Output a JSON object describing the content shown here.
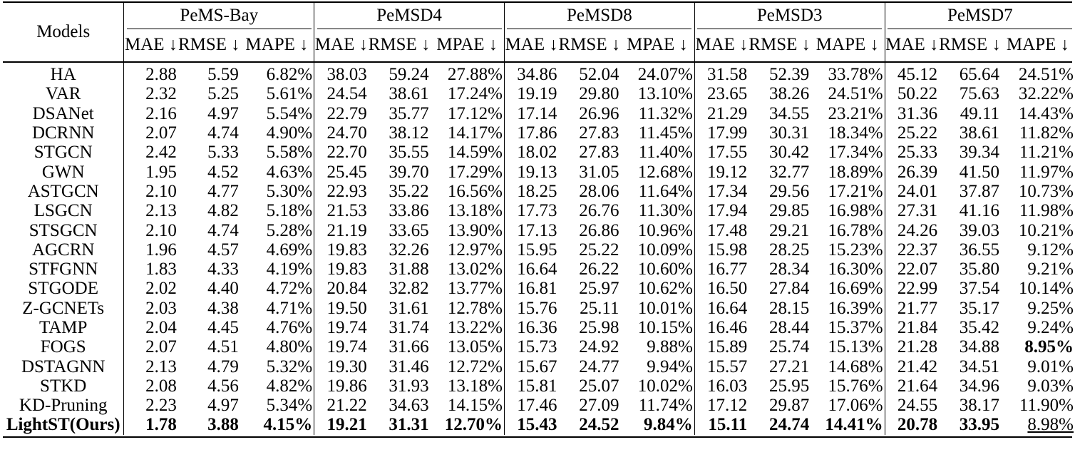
{
  "header": {
    "models_label": "Models",
    "groups": [
      "PeMS-Bay",
      "PeMSD4",
      "PeMSD8",
      "PeMSD3",
      "PeMSD7"
    ],
    "metrics": [
      [
        "MAE ↓",
        "RMSE ↓",
        "MAPE ↓"
      ],
      [
        "MAE ↓",
        "RMSE ↓",
        "MPAE ↓"
      ],
      [
        "MAE ↓",
        "RMSE ↓",
        "MPAE ↓"
      ],
      [
        "MAE ↓",
        "RMSE ↓",
        "MAPE ↓"
      ],
      [
        "MAE ↓",
        "RMSE ↓",
        "MAPE ↓"
      ]
    ]
  },
  "rows": [
    {
      "model": "HA",
      "values": [
        "2.88",
        "5.59",
        "6.82%",
        "38.03",
        "59.24",
        "27.88%",
        "34.86",
        "52.04",
        "24.07%",
        "31.58",
        "52.39",
        "33.78%",
        "45.12",
        "65.64",
        "24.51%"
      ]
    },
    {
      "model": "VAR",
      "values": [
        "2.32",
        "5.25",
        "5.61%",
        "24.54",
        "38.61",
        "17.24%",
        "19.19",
        "29.80",
        "13.10%",
        "23.65",
        "38.26",
        "24.51%",
        "50.22",
        "75.63",
        "32.22%"
      ]
    },
    {
      "model": "DSANet",
      "values": [
        "2.16",
        "4.97",
        "5.54%",
        "22.79",
        "35.77",
        "17.12%",
        "17.14",
        "26.96",
        "11.32%",
        "21.29",
        "34.55",
        "23.21%",
        "31.36",
        "49.11",
        "14.43%"
      ]
    },
    {
      "model": "DCRNN",
      "values": [
        "2.07",
        "4.74",
        "4.90%",
        "24.70",
        "38.12",
        "14.17%",
        "17.86",
        "27.83",
        "11.45%",
        "17.99",
        "30.31",
        "18.34%",
        "25.22",
        "38.61",
        "11.82%"
      ]
    },
    {
      "model": "STGCN",
      "values": [
        "2.42",
        "5.33",
        "5.58%",
        "22.70",
        "35.55",
        "14.59%",
        "18.02",
        "27.83",
        "11.40%",
        "17.55",
        "30.42",
        "17.34%",
        "25.33",
        "39.34",
        "11.21%"
      ]
    },
    {
      "model": "GWN",
      "values": [
        "1.95",
        "4.52",
        "4.63%",
        "25.45",
        "39.70",
        "17.29%",
        "19.13",
        "31.05",
        "12.68%",
        "19.12",
        "32.77",
        "18.89%",
        "26.39",
        "41.50",
        "11.97%"
      ]
    },
    {
      "model": "ASTGCN",
      "values": [
        "2.10",
        "4.77",
        "5.30%",
        "22.93",
        "35.22",
        "16.56%",
        "18.25",
        "28.06",
        "11.64%",
        "17.34",
        "29.56",
        "17.21%",
        "24.01",
        "37.87",
        "10.73%"
      ]
    },
    {
      "model": "LSGCN",
      "values": [
        "2.13",
        "4.82",
        "5.18%",
        "21.53",
        "33.86",
        "13.18%",
        "17.73",
        "26.76",
        "11.30%",
        "17.94",
        "29.85",
        "16.98%",
        "27.31",
        "41.16",
        "11.98%"
      ]
    },
    {
      "model": "STSGCN",
      "values": [
        "2.10",
        "4.74",
        "5.28%",
        "21.19",
        "33.65",
        "13.90%",
        "17.13",
        "26.86",
        "10.96%",
        "17.48",
        "29.21",
        "16.78%",
        "24.26",
        "39.03",
        "10.21%"
      ]
    },
    {
      "model": "AGCRN",
      "values": [
        "1.96",
        "4.57",
        "4.69%",
        "19.83",
        "32.26",
        "12.97%",
        "15.95",
        "25.22",
        "10.09%",
        "15.98",
        "28.25",
        "15.23%",
        "22.37",
        "36.55",
        "9.12%"
      ]
    },
    {
      "model": "STFGNN",
      "values": [
        "1.83",
        "4.33",
        "4.19%",
        "19.83",
        "31.88",
        "13.02%",
        "16.64",
        "26.22",
        "10.60%",
        "16.77",
        "28.34",
        "16.30%",
        "22.07",
        "35.80",
        "9.21%"
      ]
    },
    {
      "model": "STGODE",
      "values": [
        "2.02",
        "4.40",
        "4.72%",
        "20.84",
        "32.82",
        "13.77%",
        "16.81",
        "25.97",
        "10.62%",
        "16.50",
        "27.84",
        "16.69%",
        "22.99",
        "37.54",
        "10.14%"
      ]
    },
    {
      "model": "Z-GCNETs",
      "values": [
        "2.03",
        "4.38",
        "4.71%",
        "19.50",
        "31.61",
        "12.78%",
        "15.76",
        "25.11",
        "10.01%",
        "16.64",
        "28.15",
        "16.39%",
        "21.77",
        "35.17",
        "9.25%"
      ]
    },
    {
      "model": "TAMP",
      "values": [
        "2.04",
        "4.45",
        "4.76%",
        "19.74",
        "31.74",
        "13.22%",
        "16.36",
        "25.98",
        "10.15%",
        "16.46",
        "28.44",
        "15.37%",
        "21.84",
        "35.42",
        "9.24%"
      ]
    },
    {
      "model": "FOGS",
      "values": [
        "2.07",
        "4.51",
        "4.80%",
        "19.74",
        "31.66",
        "13.05%",
        "15.73",
        "24.92",
        "9.88%",
        "15.89",
        "25.74",
        "15.13%",
        "21.28",
        "34.88",
        "8.95%"
      ]
    },
    {
      "model": "DSTAGNN",
      "values": [
        "2.13",
        "4.79",
        "5.32%",
        "19.30",
        "31.46",
        "12.72%",
        "15.67",
        "24.77",
        "9.94%",
        "15.57",
        "27.21",
        "14.68%",
        "21.42",
        "34.51",
        "9.01%"
      ]
    },
    {
      "model": "STKD",
      "values": [
        "2.08",
        "4.56",
        "4.82%",
        "19.86",
        "31.93",
        "13.18%",
        "15.81",
        "25.07",
        "10.02%",
        "16.03",
        "25.95",
        "15.76%",
        "21.64",
        "34.96",
        "9.03%"
      ]
    },
    {
      "model": "KD-Pruning",
      "values": [
        "2.23",
        "4.97",
        "5.34%",
        "21.22",
        "34.63",
        "14.15%",
        "17.46",
        "27.09",
        "11.74%",
        "17.12",
        "29.87",
        "17.06%",
        "24.55",
        "38.17",
        "11.90%"
      ]
    },
    {
      "model": "LightST(Ours)",
      "values": [
        "1.78",
        "3.88",
        "4.15%",
        "19.21",
        "31.31",
        "12.70%",
        "15.43",
        "24.52",
        "9.84%",
        "15.11",
        "24.74",
        "14.41%",
        "20.78",
        "33.95",
        "8.98%"
      ]
    }
  ],
  "styling": {
    "bold_cells": [
      [
        14,
        14
      ],
      [
        18,
        0
      ],
      [
        18,
        1
      ],
      [
        18,
        2
      ],
      [
        18,
        3
      ],
      [
        18,
        4
      ],
      [
        18,
        5
      ],
      [
        18,
        6
      ],
      [
        18,
        7
      ],
      [
        18,
        8
      ],
      [
        18,
        9
      ],
      [
        18,
        10
      ],
      [
        18,
        11
      ],
      [
        18,
        12
      ],
      [
        18,
        13
      ]
    ],
    "bold_model_rows": [
      18
    ],
    "underlined_cells": [
      [
        18,
        14
      ]
    ]
  }
}
